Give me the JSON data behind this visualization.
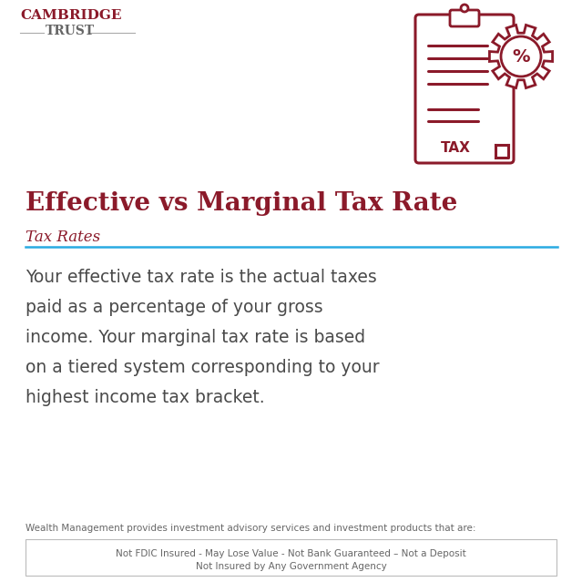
{
  "bg_color": "#ffffff",
  "cambridge_text": "CAMBRIDGE",
  "trust_text": "TRUST",
  "cambridge_color": "#8b1a2a",
  "trust_color": "#666666",
  "title": "Effective vs Marginal Tax Rate",
  "title_color": "#8b1a2a",
  "subtitle": "Tax Rates",
  "subtitle_color": "#8b1a2a",
  "subtitle_line_color": "#29abe2",
  "body_lines": [
    "Your effective tax rate is the actual taxes",
    "paid as a percentage of your gross",
    "income. Your marginal tax rate is based",
    "on a tiered system corresponding to your",
    "highest income tax bracket."
  ],
  "body_color": "#4a4a4a",
  "footer_small": "Wealth Management provides investment advisory services and investment products that are:",
  "footer_box_line1": "Not FDIC Insured - May Lose Value - Not Bank Guaranteed – Not a Deposit",
  "footer_box_line2": "Not Insured by Any Government Agency",
  "footer_color": "#666666",
  "icon_color": "#8b1a2a",
  "line_color": "#aaaaaa"
}
